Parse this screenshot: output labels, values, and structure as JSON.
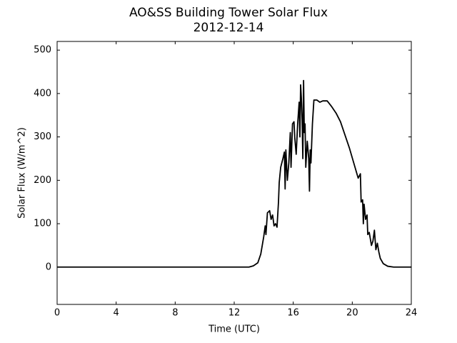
{
  "chart_data": {
    "type": "line",
    "title": "AO&SS Building Tower Solar Flux",
    "subtitle": "2012-12-14",
    "x_label": "Time (UTC)",
    "y_label": "Solar Flux (W/m^2)",
    "color": "#000000",
    "x": [
      0,
      13,
      13.3,
      13.6,
      13.8,
      13.9,
      14.0,
      14.1,
      14.15,
      14.25,
      14.4,
      14.5,
      14.6,
      14.7,
      14.8,
      14.9,
      15.0,
      15.05,
      15.15,
      15.3,
      15.4,
      15.45,
      15.5,
      15.6,
      15.7,
      15.8,
      15.85,
      15.95,
      16.05,
      16.1,
      16.15,
      16.2,
      16.3,
      16.4,
      16.45,
      16.5,
      16.55,
      16.6,
      16.65,
      16.7,
      16.75,
      16.8,
      16.85,
      16.95,
      17.05,
      17.1,
      17.15,
      17.2,
      17.3,
      17.4,
      17.6,
      17.8,
      18.0,
      18.3,
      18.6,
      18.9,
      19.2,
      19.5,
      19.8,
      20.1,
      20.4,
      20.55,
      20.6,
      20.7,
      20.75,
      20.8,
      20.9,
      21.0,
      21.05,
      21.15,
      21.3,
      21.4,
      21.5,
      21.6,
      21.7,
      21.8,
      21.9,
      22.1,
      22.4,
      22.8,
      24
    ],
    "values": [
      0,
      0,
      3,
      10,
      30,
      50,
      70,
      95,
      75,
      125,
      130,
      110,
      120,
      95,
      100,
      92,
      150,
      195,
      230,
      250,
      265,
      180,
      270,
      200,
      240,
      310,
      230,
      330,
      335,
      300,
      280,
      260,
      330,
      380,
      300,
      420,
      390,
      340,
      250,
      430,
      310,
      330,
      230,
      290,
      250,
      175,
      270,
      240,
      330,
      385,
      385,
      380,
      383,
      383,
      370,
      355,
      335,
      305,
      275,
      240,
      205,
      215,
      150,
      155,
      100,
      145,
      110,
      120,
      75,
      80,
      50,
      60,
      85,
      40,
      55,
      35,
      20,
      8,
      2,
      0,
      0
    ],
    "xlim": [
      0,
      24
    ],
    "xticks": [
      0,
      4,
      8,
      12,
      16,
      20,
      24
    ],
    "ylim": [
      -86,
      520
    ],
    "yticks": [
      0,
      100,
      200,
      300,
      400,
      500
    ]
  }
}
